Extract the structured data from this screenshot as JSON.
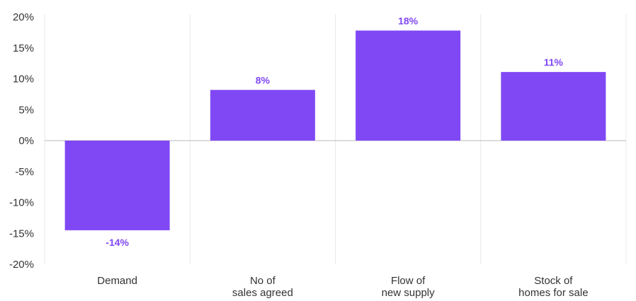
{
  "chart_data": {
    "type": "bar",
    "categories": [
      [
        "Demand"
      ],
      [
        "No of",
        "sales agreed"
      ],
      [
        "Flow of",
        "new supply"
      ],
      [
        "Stock of",
        "homes for sale"
      ]
    ],
    "values": [
      -14.5,
      8.2,
      17.8,
      11.1
    ],
    "data_labels": [
      "-14%",
      "8%",
      "18%",
      "11%"
    ],
    "ylim": [
      -20,
      20
    ],
    "yticks": [
      20,
      15,
      10,
      5,
      0,
      -5,
      -10,
      -15,
      -20
    ],
    "ytick_labels": [
      "20%",
      "15%",
      "10%",
      "5%",
      "0%",
      "-5%",
      "-10%",
      "-15%",
      "-20%"
    ],
    "grid": "vertical",
    "colors": {
      "bar": "#8048F5",
      "label": "#8048F5",
      "grid": "#e8e8e8",
      "zero_line": "#bbbbbb"
    }
  }
}
